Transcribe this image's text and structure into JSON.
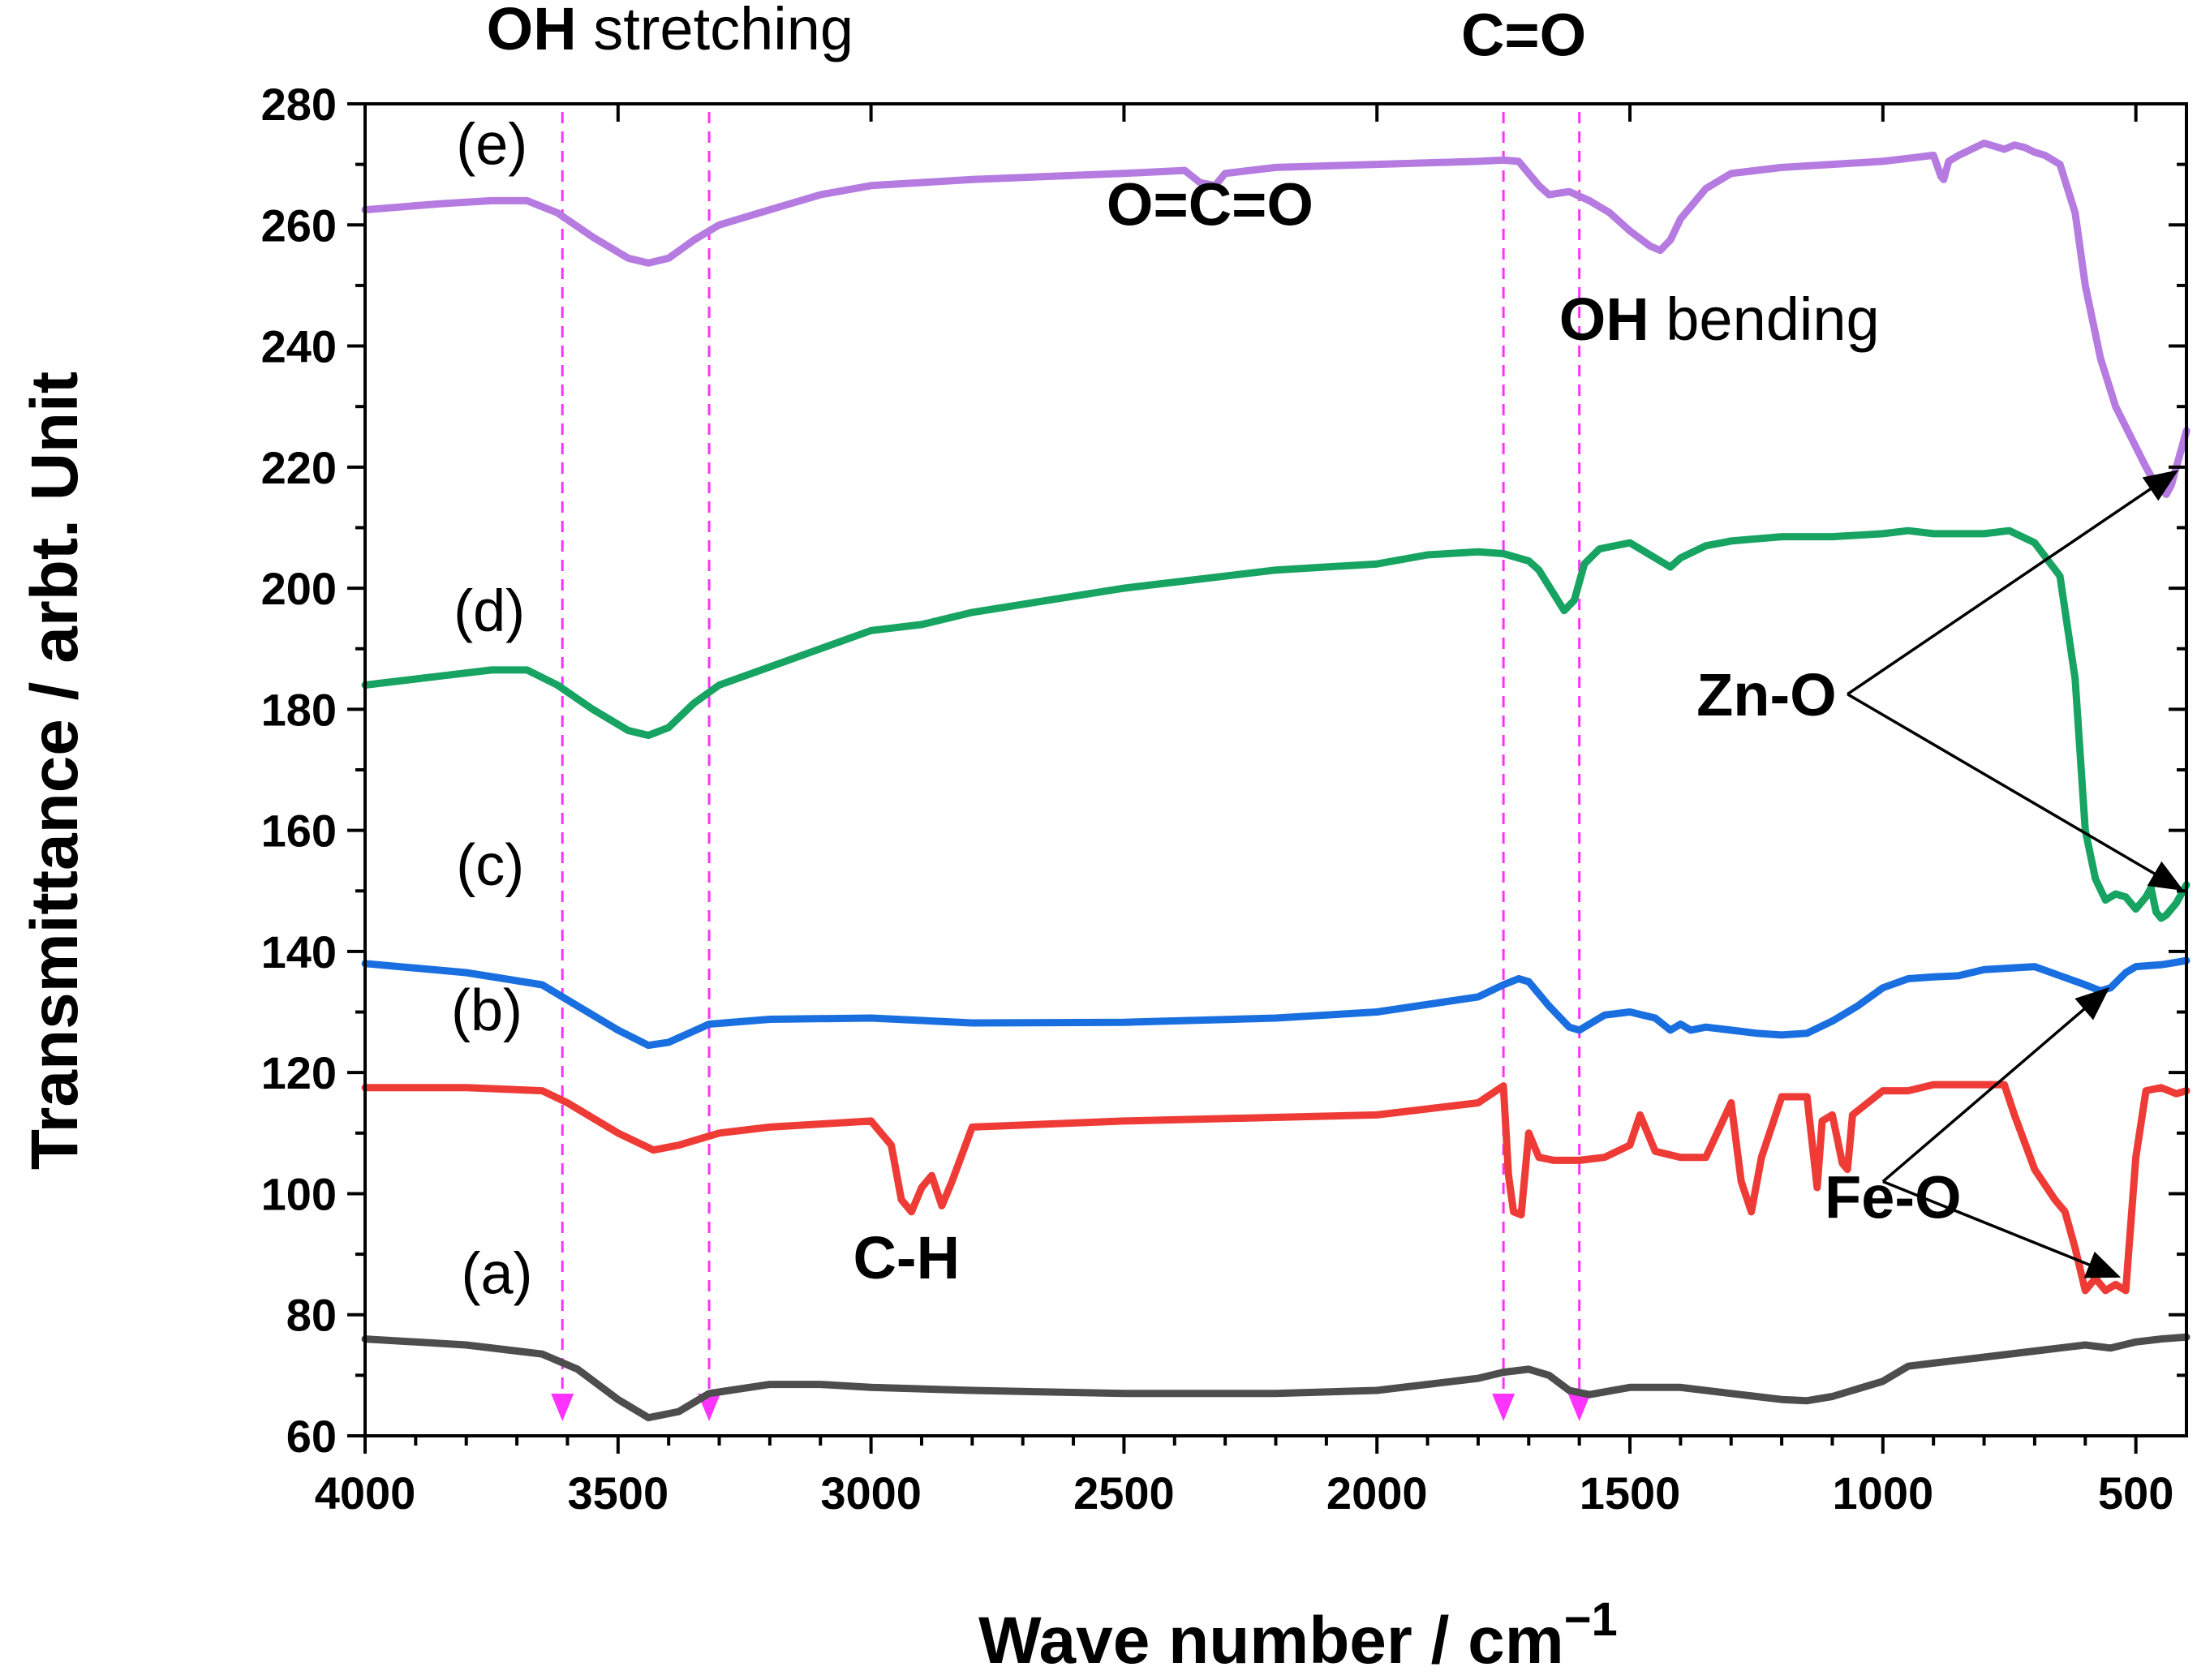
{
  "chart_data": {
    "type": "line",
    "title": "",
    "xlabel": "Wave number / cm",
    "xlabel_sup": "−1",
    "ylabel": "Transmittance / arbt. Unit",
    "xlim": [
      4000,
      400
    ],
    "ylim": [
      60,
      280
    ],
    "x_ticks": [
      4000,
      3500,
      3000,
      2500,
      2000,
      1500,
      1000,
      500
    ],
    "y_ticks": [
      60,
      80,
      100,
      120,
      140,
      160,
      180,
      200,
      220,
      240,
      260,
      280
    ],
    "x_tick_labels": [
      "4000",
      "3500",
      "3000",
      "2500",
      "2000",
      "1500",
      "1000",
      "500"
    ],
    "y_tick_labels": [
      "60",
      "80",
      "100",
      "120",
      "140",
      "160",
      "180",
      "200",
      "220",
      "240",
      "260",
      "280"
    ],
    "series": [
      {
        "name": "(a)",
        "color": "#4d4d4d",
        "x": [
          4000,
          3800,
          3650,
          3580,
          3500,
          3440,
          3380,
          3320,
          3200,
          3100,
          3000,
          2800,
          2500,
          2200,
          2000,
          1800,
          1750,
          1700,
          1660,
          1620,
          1580,
          1500,
          1400,
          1300,
          1200,
          1150,
          1100,
          1000,
          950,
          900,
          800,
          700,
          600,
          550,
          500,
          450,
          400
        ],
        "y": [
          76,
          75,
          73.5,
          71,
          66,
          63,
          64,
          67,
          68.5,
          68.5,
          68,
          67.5,
          67,
          67,
          67.5,
          69.5,
          70.5,
          71,
          70,
          67.5,
          66.8,
          68,
          68,
          67,
          66,
          65.8,
          66.5,
          69,
          71.5,
          72,
          73,
          74,
          75,
          74.5,
          75.5,
          76,
          76.3
        ]
      },
      {
        "name": "(b)",
        "color": "#ee3b36",
        "x": [
          4000,
          3800,
          3650,
          3600,
          3500,
          3430,
          3380,
          3300,
          3200,
          3100,
          3000,
          2960,
          2940,
          2920,
          2900,
          2880,
          2860,
          2840,
          2800,
          2500,
          2000,
          1800,
          1750,
          1740,
          1730,
          1715,
          1700,
          1680,
          1650,
          1600,
          1550,
          1500,
          1480,
          1450,
          1400,
          1350,
          1300,
          1280,
          1260,
          1240,
          1200,
          1150,
          1130,
          1120,
          1100,
          1080,
          1070,
          1060,
          1000,
          950,
          900,
          850,
          800,
          760,
          740,
          700,
          660,
          640,
          620,
          600,
          580,
          560,
          540,
          520,
          500,
          480,
          450,
          420,
          400
        ],
        "y": [
          117.5,
          117.5,
          117,
          115,
          110,
          107.2,
          108,
          110,
          111,
          111.5,
          112,
          108,
          99,
          97,
          101,
          103,
          98,
          102,
          111,
          112,
          113,
          115,
          117.8,
          103,
          97,
          96.5,
          110,
          106,
          105.5,
          105.5,
          106,
          108,
          113,
          107,
          106,
          106,
          115,
          102,
          97,
          106,
          116,
          116,
          101,
          112,
          113,
          105,
          104,
          113,
          117,
          117,
          118,
          118,
          118,
          118,
          113,
          104,
          99,
          97,
          91,
          84,
          86,
          84,
          85,
          84,
          106,
          117,
          117.5,
          116.5,
          117
        ]
      },
      {
        "name": "(c)",
        "color": "#1a6fe0",
        "x": [
          4000,
          3800,
          3650,
          3600,
          3500,
          3440,
          3400,
          3320,
          3200,
          3000,
          2800,
          2500,
          2200,
          2000,
          1800,
          1750,
          1720,
          1700,
          1660,
          1620,
          1600,
          1550,
          1500,
          1450,
          1420,
          1400,
          1380,
          1350,
          1300,
          1250,
          1200,
          1150,
          1100,
          1050,
          1000,
          950,
          900,
          850,
          800,
          700,
          650,
          600,
          570,
          550,
          520,
          500,
          450,
          420,
          400
        ],
        "y": [
          138,
          136.5,
          134.5,
          132,
          127,
          124.5,
          125,
          128,
          128.8,
          129,
          128.2,
          128.3,
          129,
          130,
          132.5,
          134.5,
          135.5,
          135,
          131,
          127.5,
          127,
          129.5,
          130,
          129,
          127,
          128,
          127,
          127.5,
          127,
          126.5,
          126.2,
          126.5,
          128.5,
          131,
          134,
          135.5,
          135.8,
          136,
          137,
          137.5,
          136,
          134.5,
          133.5,
          134,
          136.5,
          137.5,
          137.8,
          138.2,
          138.5
        ]
      },
      {
        "name": "(d)",
        "color": "#17a361",
        "x": [
          4000,
          3850,
          3750,
          3680,
          3620,
          3550,
          3480,
          3440,
          3400,
          3350,
          3300,
          3200,
          3100,
          3000,
          2900,
          2800,
          2500,
          2200,
          2000,
          1900,
          1800,
          1750,
          1700,
          1680,
          1650,
          1630,
          1610,
          1590,
          1560,
          1500,
          1450,
          1420,
          1400,
          1350,
          1300,
          1200,
          1100,
          1000,
          950,
          900,
          800,
          750,
          700,
          650,
          620,
          600,
          580,
          560,
          540,
          520,
          500,
          480,
          470,
          460,
          450,
          440,
          420,
          400
        ],
        "y": [
          184,
          185.5,
          186.5,
          186.5,
          184,
          180,
          176.5,
          175.7,
          177,
          181,
          184,
          187,
          190,
          193,
          194,
          196,
          200,
          203,
          204,
          205.5,
          206,
          205.7,
          204.5,
          203,
          199,
          196.3,
          198,
          204,
          206.5,
          207.5,
          205,
          203.5,
          205,
          207,
          207.8,
          208.5,
          208.5,
          209,
          209.5,
          209,
          209,
          209.5,
          207.5,
          202,
          185,
          160,
          152,
          148.5,
          149.5,
          149,
          147,
          149,
          150.5,
          146.5,
          145.5,
          146,
          148,
          151
        ]
      },
      {
        "name": "(e)",
        "color": "#b57be0",
        "x": [
          4000,
          3850,
          3750,
          3680,
          3620,
          3550,
          3480,
          3440,
          3400,
          3350,
          3300,
          3200,
          3100,
          3000,
          2800,
          2500,
          2380,
          2350,
          2320,
          2300,
          2200,
          2000,
          1800,
          1750,
          1720,
          1700,
          1680,
          1660,
          1620,
          1580,
          1540,
          1500,
          1460,
          1440,
          1420,
          1400,
          1350,
          1300,
          1200,
          1100,
          1000,
          950,
          900,
          885,
          880,
          870,
          850,
          800,
          780,
          760,
          740,
          720,
          700,
          680,
          650,
          620,
          600,
          570,
          540,
          510,
          480,
          460,
          440,
          430,
          420,
          410,
          400
        ],
        "y": [
          262.5,
          263.5,
          264,
          264,
          262,
          258,
          254.5,
          253.7,
          254.5,
          257.5,
          260,
          262.5,
          265,
          266.5,
          267.5,
          268.5,
          269,
          267,
          266.5,
          268.5,
          269.5,
          270,
          270.5,
          270.7,
          270.5,
          268.5,
          266.5,
          265,
          265.5,
          264,
          262,
          259,
          256.5,
          255.8,
          257.5,
          261,
          266,
          268.5,
          269.5,
          270,
          270.5,
          271,
          271.5,
          268,
          267.5,
          270.5,
          271.5,
          273.5,
          273,
          272.5,
          273.2,
          272.8,
          272,
          271.5,
          270,
          262,
          250,
          238,
          230,
          225,
          220,
          217,
          215.5,
          217,
          220,
          223,
          226
        ]
      }
    ],
    "series_label_positions": [
      {
        "text": "(a)",
        "x": 3810,
        "y": 83.5
      },
      {
        "text": "(b)",
        "x": 3830,
        "y": 127
      },
      {
        "text": "(c)",
        "x": 3820,
        "y": 151
      },
      {
        "text": "(d)",
        "x": 3825,
        "y": 193
      },
      {
        "text": "(e)",
        "x": 3820,
        "y": 270
      }
    ],
    "reference_lines": [
      3610,
      3320,
      1750,
      1600
    ],
    "reference_line_color": "#ff33ff",
    "annotations": [
      {
        "bold": "OH",
        "text": " stretching",
        "x": 3760,
        "y": 289,
        "anchor": "start"
      },
      {
        "bold": "C=O",
        "text": "",
        "x": 1710,
        "y": 288,
        "anchor": "middle"
      },
      {
        "bold": "O=C=O",
        "text": "",
        "x": 2330,
        "y": 260,
        "anchor": "middle"
      },
      {
        "bold": "OH",
        "text": " bending",
        "x": 1640,
        "y": 241,
        "anchor": "start"
      },
      {
        "bold": "C-H",
        "text": "",
        "x": 2930,
        "y": 86,
        "anchor": "middle"
      },
      {
        "bold": "Zn-O",
        "text": "",
        "x": 1230,
        "y": 179,
        "anchor": "middle"
      },
      {
        "bold": "Fe-O",
        "text": "",
        "x": 980,
        "y": 96,
        "anchor": "middle"
      }
    ],
    "arrows": [
      {
        "from": [
          1070,
          182.5
        ],
        "to": [
          425,
          219
        ]
      },
      {
        "from": [
          1070,
          182.5
        ],
        "to": [
          415,
          150.5
        ]
      },
      {
        "from": [
          1000,
          102
        ],
        "to": [
          560,
          133.5
        ]
      },
      {
        "from": [
          1000,
          102
        ],
        "to": [
          540,
          86.5
        ]
      }
    ]
  }
}
